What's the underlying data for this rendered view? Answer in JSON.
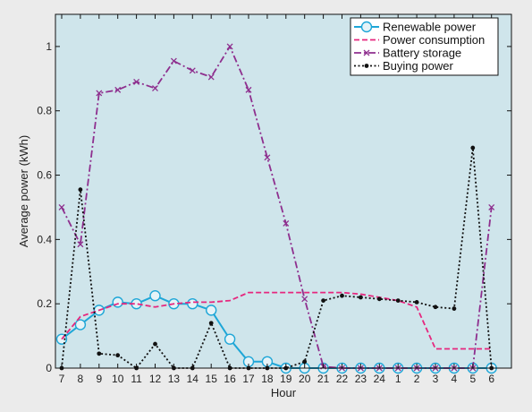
{
  "chart_data": {
    "type": "line",
    "xlabel": "Hour",
    "ylabel": "Average power (kWh)",
    "categories": [
      "7",
      "8",
      "9",
      "10",
      "11",
      "12",
      "13",
      "14",
      "15",
      "16",
      "17",
      "18",
      "19",
      "20",
      "21",
      "22",
      "23",
      "24",
      "1",
      "2",
      "3",
      "4",
      "5",
      "6"
    ],
    "ylim": [
      0,
      1.1
    ],
    "yticks": [
      0,
      0.2,
      0.4,
      0.6,
      0.8,
      1
    ],
    "ytick_labels": [
      "0",
      "0.2",
      "0.4",
      "0.6",
      "0.8",
      "1"
    ],
    "grid": false,
    "legend_position": "top-right",
    "background_color": "#cfe5eb",
    "series": [
      {
        "name": "Renewable power",
        "color": "#1ea6d7",
        "line_style": "solid",
        "marker": "circle",
        "values": [
          0.09,
          0.135,
          0.18,
          0.205,
          0.2,
          0.225,
          0.2,
          0.2,
          0.18,
          0.09,
          0.02,
          0.02,
          0,
          0,
          0,
          0,
          0,
          0,
          0,
          0,
          0,
          0,
          0,
          0
        ]
      },
      {
        "name": "Power consumption",
        "color": "#e6277e",
        "line_style": "dashed",
        "marker": "none",
        "values": [
          0.09,
          0.16,
          0.18,
          0.2,
          0.2,
          0.19,
          0.2,
          0.205,
          0.205,
          0.21,
          0.235,
          0.235,
          0.235,
          0.235,
          0.235,
          0.235,
          0.23,
          0.22,
          0.21,
          0.19,
          0.06,
          0.06,
          0.06,
          0.06
        ]
      },
      {
        "name": "Battery storage",
        "color": "#8e2f8e",
        "line_style": "dashdot",
        "marker": "x",
        "values": [
          0.5,
          0.385,
          0.855,
          0.865,
          0.89,
          0.87,
          0.955,
          0.925,
          0.905,
          1.0,
          0.865,
          0.655,
          0.45,
          0.215,
          0.005,
          0,
          0,
          0,
          0,
          0,
          0,
          0,
          0,
          0.5
        ]
      },
      {
        "name": "Buying power",
        "color": "#111111",
        "line_style": "dotted",
        "marker": "dot",
        "values": [
          0,
          0.555,
          0.045,
          0.04,
          0,
          0.075,
          0,
          0,
          0.14,
          0,
          0,
          0,
          0,
          0.02,
          0.21,
          0.225,
          0.22,
          0.215,
          0.21,
          0.205,
          0.19,
          0.185,
          0.685,
          0
        ]
      }
    ]
  }
}
